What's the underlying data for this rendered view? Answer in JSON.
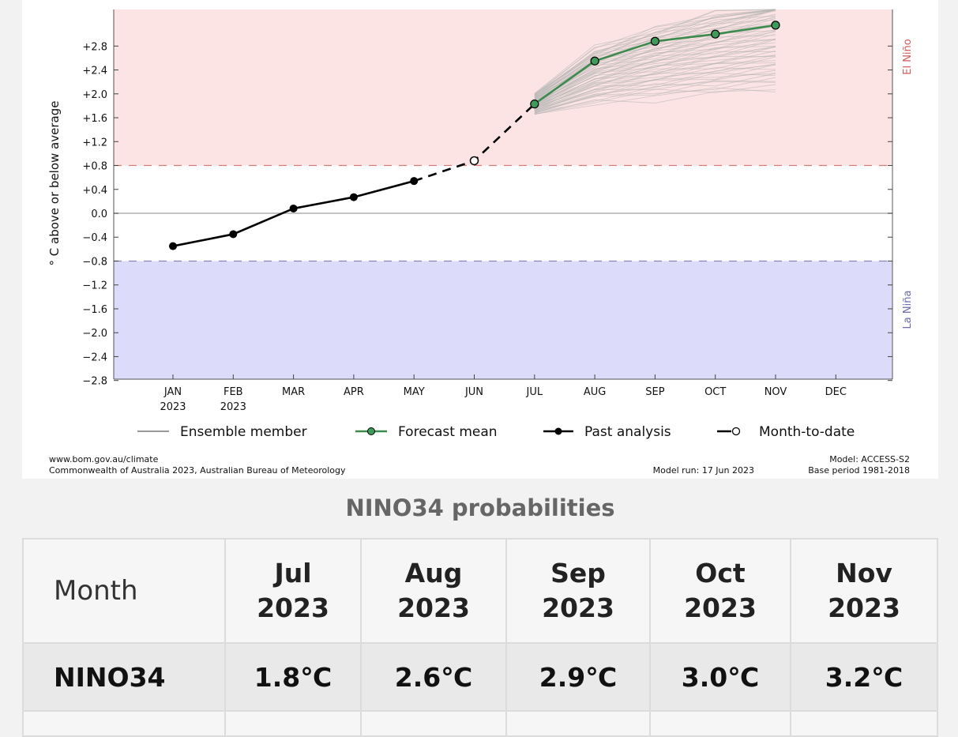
{
  "chart_data": {
    "type": "line",
    "ylabel": "° C above or below average",
    "ylim": [
      -2.8,
      3.2
    ],
    "y_ticks": [
      "+2.8",
      "+2.4",
      "+2.0",
      "+1.6",
      "+1.2",
      "+0.8",
      "+0.4",
      "0.0",
      "−0.4",
      "−0.8",
      "−1.2",
      "−1.6",
      "−2.0",
      "−2.4",
      "−2.8"
    ],
    "y_tick_values": [
      2.8,
      2.4,
      2.0,
      1.6,
      1.2,
      0.8,
      0.4,
      0.0,
      -0.4,
      -0.8,
      -1.2,
      -1.6,
      -2.0,
      -2.4,
      -2.8
    ],
    "x_ticks": [
      {
        "month": "JAN",
        "year": "2023"
      },
      {
        "month": "FEB",
        "year": "2023"
      },
      {
        "month": "MAR",
        "year": ""
      },
      {
        "month": "APR",
        "year": ""
      },
      {
        "month": "MAY",
        "year": ""
      },
      {
        "month": "JUN",
        "year": ""
      },
      {
        "month": "JUL",
        "year": ""
      },
      {
        "month": "AUG",
        "year": ""
      },
      {
        "month": "SEP",
        "year": ""
      },
      {
        "month": "OCT",
        "year": ""
      },
      {
        "month": "NOV",
        "year": ""
      },
      {
        "month": "DEC",
        "year": ""
      }
    ],
    "thresholds": {
      "el_nino": 0.8,
      "la_nina": -0.8
    },
    "regions": {
      "el_nino": {
        "label": "El Niño",
        "color": "#fde4e4",
        "line_color": "#d77a7a",
        "text_color": "#d05a5a"
      },
      "la_nina": {
        "label": "La Niña",
        "color": "#dcdcfa",
        "line_color": "#8585b5",
        "text_color": "#6a6aa8"
      }
    },
    "series": [
      {
        "name": "Past analysis",
        "color": "#000000",
        "month_index": [
          0,
          1,
          2,
          3,
          4
        ],
        "values": [
          -0.55,
          -0.35,
          0.08,
          0.27,
          0.54
        ]
      },
      {
        "name": "Month-to-date",
        "color": "#000000",
        "month_index": [
          5
        ],
        "values": [
          0.88
        ]
      },
      {
        "name": "Forecast mean",
        "color": "#3d8a4e",
        "marker_color": "#3d9a5a",
        "month_index": [
          6,
          7,
          8,
          9,
          10
        ],
        "values": [
          1.83,
          2.55,
          2.88,
          3.0,
          3.15
        ]
      }
    ],
    "ensemble": {
      "color": "#b3b3b3",
      "month_index": [
        6,
        7,
        8,
        9,
        10
      ],
      "start": 1.83,
      "end_low": 2.05,
      "end_high": 3.6
    },
    "legend": [
      {
        "label": "Ensemble member",
        "kind": "ensemble"
      },
      {
        "label": "Forecast mean",
        "kind": "forecast"
      },
      {
        "label": "Past analysis",
        "kind": "past"
      },
      {
        "label": "Month-to-date",
        "kind": "mtd"
      }
    ]
  },
  "footer": {
    "site": "www.bom.gov.au/climate",
    "copyright": "Commonwealth of Australia 2023, Australian Bureau of Meteorology",
    "model_run": "Model run: 17 Jun 2023",
    "model": "Model: ACCESS-S2",
    "base_period": "Base period 1981-2018"
  },
  "table": {
    "title": "NINO34 probabilities",
    "row_header": "Month",
    "columns": [
      {
        "month": "Jul",
        "year": "2023"
      },
      {
        "month": "Aug",
        "year": "2023"
      },
      {
        "month": "Sep",
        "year": "2023"
      },
      {
        "month": "Oct",
        "year": "2023"
      },
      {
        "month": "Nov",
        "year": "2023"
      }
    ],
    "row_label": "NINO34",
    "values": [
      "1.8℃",
      "2.6℃",
      "2.9℃",
      "3.0℃",
      "3.2℃"
    ]
  }
}
